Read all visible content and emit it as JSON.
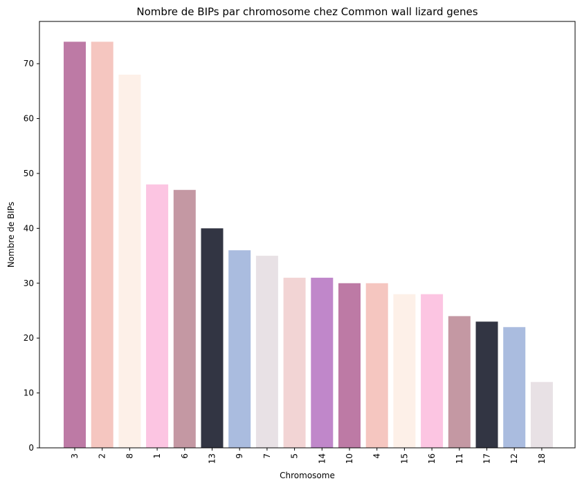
{
  "chart_data": {
    "type": "bar",
    "title": "Nombre de BIPs par chromosome chez Common wall lizard genes",
    "xlabel": "Chromosome",
    "ylabel": "Nombre de BIPs",
    "categories": [
      "3",
      "2",
      "8",
      "1",
      "6",
      "13",
      "9",
      "7",
      "5",
      "14",
      "10",
      "4",
      "15",
      "16",
      "11",
      "17",
      "12",
      "18"
    ],
    "values": [
      74,
      74,
      68,
      48,
      47,
      40,
      36,
      35,
      31,
      31,
      30,
      30,
      28,
      28,
      24,
      23,
      22,
      12
    ],
    "colors": [
      "#bd7aa5",
      "#f5c6c0",
      "#fdf0e8",
      "#fcc5e2",
      "#c498a3",
      "#323543",
      "#aabcdf",
      "#e8e1e5",
      "#f2d4d4",
      "#c087ca",
      "#bd7aa5",
      "#f5c6c0",
      "#fdf0e8",
      "#fcc5e2",
      "#c498a3",
      "#323543",
      "#aabcdf",
      "#e8e1e5"
    ],
    "ylim": [
      0,
      77.7
    ],
    "yticks": [
      0,
      10,
      20,
      30,
      40,
      50,
      60,
      70
    ],
    "grid": false,
    "legend": "none"
  }
}
